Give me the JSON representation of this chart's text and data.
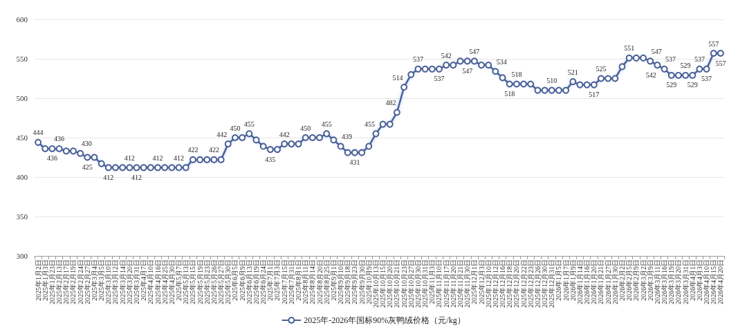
{
  "chart_data": {
    "type": "line",
    "categories": [
      "2025年1月2日",
      "2025年1月3日",
      "2025年1月23日",
      "2025年2月13日",
      "2025年2月17日",
      "2025年2月19日",
      "2025年2月24日",
      "2025年2月27日",
      "2025年3月4日",
      "2025年3月5日",
      "2025年3月10日",
      "2025年3月12日",
      "2025年3月14日",
      "2025年3月20日",
      "2025年3月31日",
      "2025年4月7日",
      "2025年4月10日",
      "2025年4月16日",
      "2025年4月25日",
      "2025年4月30日",
      "2025年5月7日",
      "2025年5月13日",
      "2025年5月15日",
      "2025年5月19日",
      "2025年5月23日",
      "2025年5月26日",
      "2025年5月27日",
      "2025年5月30日",
      "2025年6月5日",
      "2025年6月9日",
      "2025年6月13日",
      "2025年6月19日",
      "2025年6月24日",
      "2025年7月1日",
      "2025年7月3日",
      "2025年7月15日",
      "2025年7月31日",
      "2025年8月1日",
      "2025年8月11日",
      "2025年8月14日",
      "2025年8月20日",
      "2025年8月25日",
      "2025年9月1日",
      "2025年9月10日",
      "2025年9月18日",
      "2025年9月23日",
      "2025年9月30日",
      "2025年10月9日",
      "2025年10月13日",
      "2025年10月15日",
      "2025年10月20日",
      "2025年10月21日",
      "2025年10月23日",
      "2025年10月27日",
      "2025年10月30日",
      "2025年10月31日",
      "2025年11月3日",
      "2025年11月10日",
      "2025年11月17日",
      "2025年11月20日",
      "2025年11月21日",
      "2025年11月30日",
      "2025年12月1日",
      "2025年12月3日",
      "2025年12月10日",
      "2025年12月12日",
      "2025年12月16日",
      "2025年12月18日",
      "2025年12月20日",
      "2025年12月22日",
      "2025年12月23日",
      "2025年12月26日",
      "2025年12月30日",
      "2025年12月31日",
      "2026年1月5日",
      "2026年1月7日",
      "2026年1月9日",
      "2026年1月14日",
      "2026年1月16日",
      "2026年1月20日",
      "2026年1月21日",
      "2026年1月27日",
      "2026年1月30日",
      "2026年2月2日",
      "2026年2月5日",
      "2026年2月9日",
      "2026年3月2日",
      "2026年3月9日",
      "2026年3月11日",
      "2026年3月16日",
      "2026年3月19日",
      "2026年3月20日",
      "2026年3月31日",
      "2026年4月1日",
      "2026年4月3日",
      "2026年4月10日",
      "2026年4月15日",
      "2026年4月20日"
    ],
    "series": [
      {
        "name": "2025年-2026年国标90%灰鸭绒价格（元/kg）",
        "color": "#4a6096",
        "values": [
          444,
          436,
          436,
          436,
          433,
          433,
          430,
          425,
          425,
          417,
          412,
          412,
          412,
          412,
          412,
          412,
          412,
          412,
          412,
          412,
          412,
          412,
          422,
          422,
          422,
          422,
          422,
          442,
          450,
          450,
          455,
          447,
          439,
          435,
          435,
          442,
          442,
          442,
          450,
          450,
          450,
          455,
          447,
          439,
          431,
          431,
          431,
          439,
          455,
          467,
          467,
          482,
          514,
          530,
          537,
          537,
          537,
          537,
          542,
          542,
          547,
          547,
          547,
          542,
          542,
          534,
          526,
          518,
          518,
          518,
          518,
          510,
          510,
          510,
          510,
          510,
          521,
          517,
          517,
          517,
          525,
          525,
          525,
          540,
          551,
          551,
          551,
          547,
          542,
          537,
          529,
          529,
          529,
          529,
          537,
          537,
          557,
          557
        ],
        "value_labels": [
          "444",
          null,
          "436",
          "436",
          null,
          null,
          "430",
          "425",
          null,
          null,
          "412",
          null,
          null,
          "412",
          "412",
          null,
          null,
          "412",
          null,
          null,
          "412",
          null,
          "422",
          null,
          null,
          "422",
          null,
          "442",
          "450",
          null,
          "455",
          null,
          null,
          "435",
          null,
          "442",
          null,
          null,
          "450",
          null,
          null,
          "455",
          null,
          "439",
          null,
          "431",
          null,
          null,
          "455",
          null,
          null,
          "482",
          "514",
          null,
          "537",
          null,
          null,
          "537",
          "542",
          null,
          null,
          "547",
          "547",
          null,
          null,
          "534",
          null,
          "518",
          "518",
          null,
          null,
          null,
          null,
          "510",
          null,
          null,
          "521",
          null,
          null,
          "517",
          "525",
          null,
          null,
          null,
          "551",
          null,
          null,
          "547",
          "542",
          "537",
          "529",
          null,
          "529",
          "529",
          "537",
          "537",
          "557",
          "557"
        ]
      }
    ],
    "ylim": [
      300,
      600
    ],
    "yticks": [
      300,
      350,
      400,
      450,
      500,
      550,
      600
    ],
    "grid": "y",
    "legend": "bottom",
    "marker": "circle",
    "line_style": "solid"
  }
}
